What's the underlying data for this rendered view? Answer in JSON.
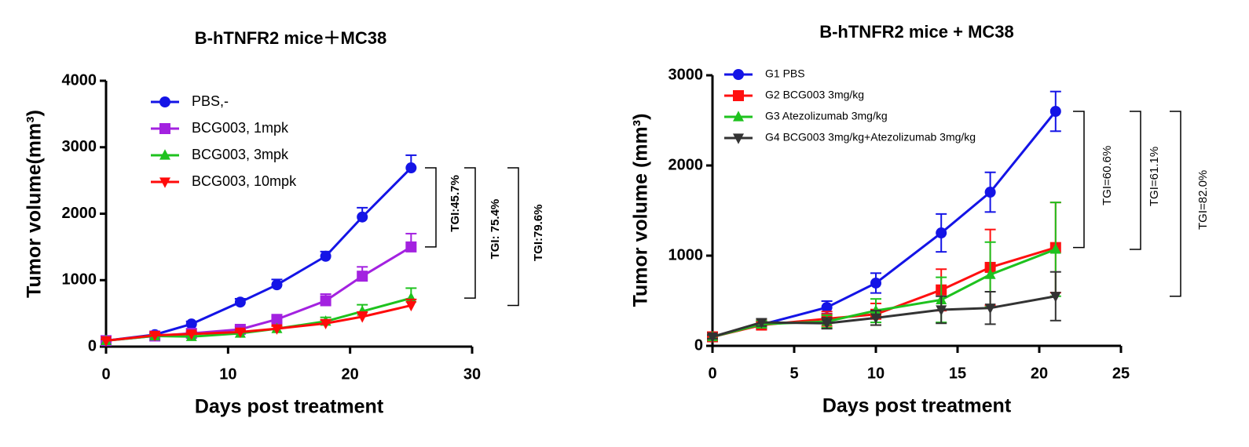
{
  "chart_data": [
    {
      "type": "line",
      "title": "B-hTNFR2 mice＋MC38",
      "x_label": "Days post treatment",
      "y_label": "Tumor volume(mm³)",
      "x": [
        0,
        4,
        7,
        11,
        14,
        18,
        21,
        25
      ],
      "xlim": [
        0,
        30
      ],
      "xticks": [
        0,
        10,
        20,
        30
      ],
      "ylim": [
        0,
        4000
      ],
      "yticks": [
        0,
        1000,
        2000,
        3000,
        4000
      ],
      "error_bars": "up",
      "series": [
        {
          "name": "PBS,-",
          "color": "#1414e6",
          "marker": "circle",
          "values": [
            90,
            180,
            340,
            670,
            930,
            1360,
            1950,
            2690
          ],
          "errors": [
            20,
            30,
            40,
            50,
            80,
            70,
            140,
            190
          ]
        },
        {
          "name": "BCG003, 1mpk",
          "color": "#a322e0",
          "marker": "square",
          "values": [
            90,
            160,
            200,
            260,
            410,
            690,
            1060,
            1500
          ],
          "errors": [
            20,
            30,
            30,
            40,
            40,
            100,
            140,
            200
          ]
        },
        {
          "name": "BCG003, 3mpk",
          "color": "#1ec21e",
          "marker": "triangle-up",
          "values": [
            90,
            160,
            150,
            200,
            270,
            380,
            530,
            730
          ],
          "errors": [
            20,
            30,
            30,
            30,
            40,
            60,
            100,
            150
          ]
        },
        {
          "name": "BCG003, 10mpk",
          "color": "#ff0a0a",
          "marker": "triangle-down",
          "values": [
            90,
            170,
            190,
            220,
            270,
            350,
            450,
            620
          ],
          "errors": [
            20,
            30,
            30,
            30,
            40,
            50,
            70,
            90
          ]
        }
      ],
      "annotations": [
        "TGI:45.7%",
        "TGI:  75.4%",
        "TGI:79.6%"
      ]
    },
    {
      "type": "line",
      "title": "B-hTNFR2 mice + MC38",
      "x_label": "Days post treatment",
      "y_label": "Tumor volume (mm³)",
      "x": [
        0,
        3,
        7,
        10,
        14,
        17,
        21
      ],
      "xlim": [
        0,
        25
      ],
      "xticks": [
        0,
        5,
        10,
        15,
        20,
        25
      ],
      "ylim": [
        0,
        3000
      ],
      "yticks": [
        0,
        1000,
        2000,
        3000
      ],
      "error_bars": "both",
      "series": [
        {
          "name": "G1 PBS",
          "color": "#1414e6",
          "marker": "circle",
          "values": [
            100,
            235,
            426,
            696,
            1252,
            1704,
            2600
          ],
          "errors": [
            20,
            40,
            70,
            110,
            210,
            220,
            220
          ]
        },
        {
          "name": "G2 BCG003 3mg/kg",
          "color": "#ff1010",
          "marker": "square",
          "values": [
            100,
            230,
            300,
            350,
            620,
            870,
            1090
          ],
          "errors": [
            20,
            40,
            80,
            120,
            230,
            420,
            500
          ]
        },
        {
          "name": "G3 Atezolizumab 3mg/kg",
          "color": "#1ec21e",
          "marker": "triangle-up",
          "values": [
            100,
            240,
            270,
            390,
            510,
            790,
            1070
          ],
          "errors": [
            20,
            40,
            70,
            130,
            250,
            360,
            520
          ]
        },
        {
          "name": "G4 BCG003 3mg/kg+Atezolizumab 3mg/kg",
          "color": "#333333",
          "marker": "triangle-down",
          "values": [
            100,
            260,
            250,
            310,
            400,
            420,
            550
          ],
          "errors": [
            20,
            40,
            60,
            80,
            150,
            180,
            270
          ]
        }
      ],
      "annotations": [
        "TGI=60.6%",
        "TGI=61.1%",
        "TGI=82.0%"
      ]
    }
  ]
}
